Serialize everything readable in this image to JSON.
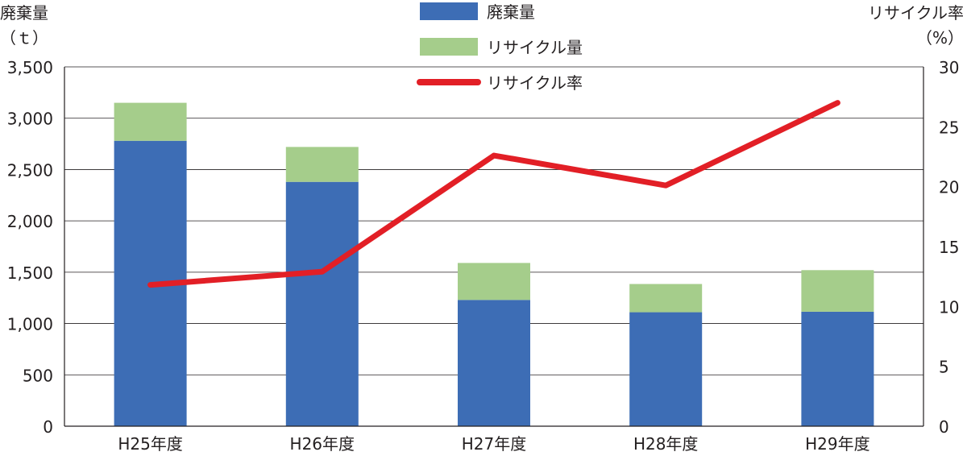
{
  "chart_data": {
    "type": "bar",
    "categories": [
      "H25年度",
      "H26年度",
      "H27年度",
      "H28年度",
      "H29年度"
    ],
    "series": [
      {
        "name": "廃棄量",
        "kind": "bar",
        "stack": "a",
        "axis": "left",
        "color": "#3d6db5",
        "values": [
          2780,
          2380,
          1230,
          1110,
          1115
        ]
      },
      {
        "name": "リサイクル量",
        "kind": "bar",
        "stack": "a",
        "axis": "left",
        "color": "#a5cd8b",
        "values": [
          370,
          340,
          360,
          275,
          405
        ]
      },
      {
        "name": "リサイクル率",
        "kind": "line",
        "axis": "right",
        "color": "#e21f26",
        "values": [
          11.8,
          12.9,
          22.6,
          20.1,
          27.0
        ]
      }
    ],
    "y_left": {
      "label_line1": "廃棄量",
      "label_line2": "（ｔ）",
      "range": [
        0,
        3500
      ],
      "ticks": [
        0,
        500,
        1000,
        1500,
        2000,
        2500,
        3000,
        3500
      ],
      "tick_labels": [
        "0",
        "500",
        "1,000",
        "1,500",
        "2,000",
        "2,500",
        "3,000",
        "3,500"
      ]
    },
    "y_right": {
      "label_line1": "リサイクル率",
      "label_line2": "（%）",
      "range": [
        0,
        30
      ],
      "ticks": [
        0,
        5,
        10,
        15,
        20,
        25,
        30
      ],
      "tick_labels": [
        "0",
        "5",
        "10",
        "15",
        "20",
        "25",
        "30"
      ]
    },
    "grid": true,
    "legend_position": "top-center",
    "legend": [
      {
        "label": "廃棄量",
        "swatch": "box",
        "color": "#3d6db5"
      },
      {
        "label": "リサイクル量",
        "swatch": "box",
        "color": "#a5cd8b"
      },
      {
        "label": "リサイクル率",
        "swatch": "line",
        "color": "#e21f26"
      }
    ]
  }
}
